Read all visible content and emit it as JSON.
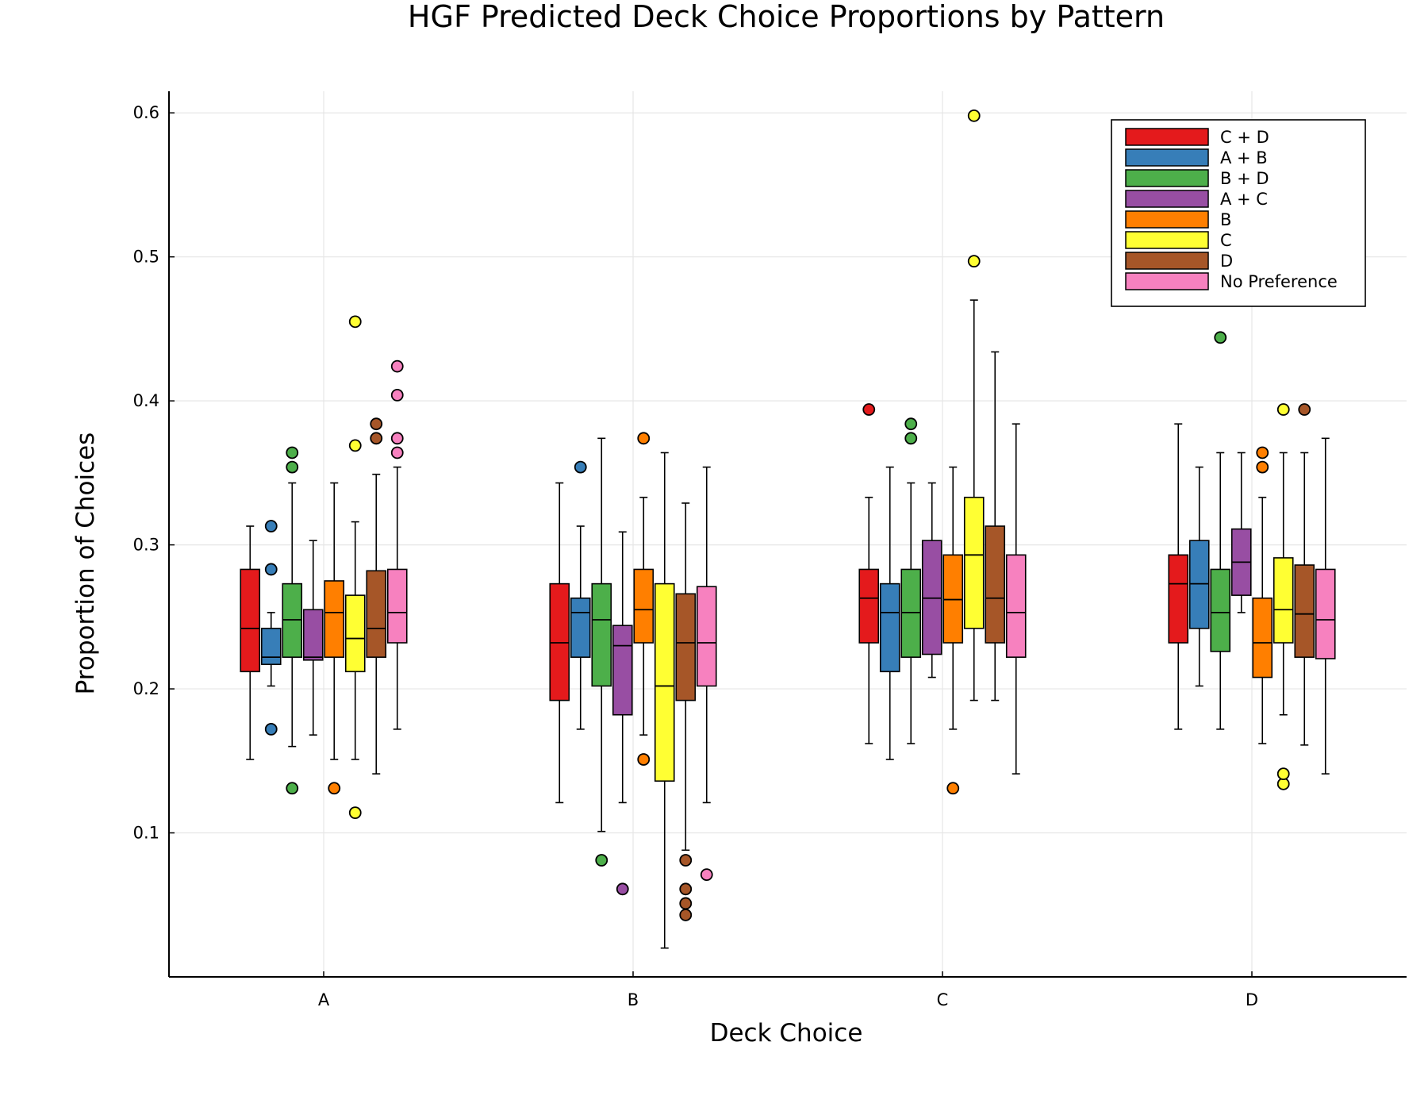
{
  "chart_data": {
    "type": "box",
    "title": "HGF Predicted Deck Choice Proportions by Pattern",
    "xlabel": "Deck Choice",
    "ylabel": "Proportion of Choices",
    "categories": [
      "A",
      "B",
      "C",
      "D"
    ],
    "ylim": [
      0.0,
      0.615
    ],
    "yticks": [
      0.1,
      0.2,
      0.3,
      0.4,
      0.5,
      0.6
    ],
    "ytick_labels": [
      "0.1",
      "0.2",
      "0.3",
      "0.4",
      "0.5",
      "0.6"
    ],
    "grid": true,
    "legend_position": "top-right",
    "series": [
      {
        "name": "C + D",
        "color": "#e41a1c",
        "boxes": [
          {
            "whisker_low": 0.151,
            "q1": 0.212,
            "median": 0.242,
            "q3": 0.283,
            "whisker_high": 0.313,
            "outliers": []
          },
          {
            "whisker_low": 0.121,
            "q1": 0.192,
            "median": 0.232,
            "q3": 0.273,
            "whisker_high": 0.343,
            "outliers": []
          },
          {
            "whisker_low": 0.162,
            "q1": 0.232,
            "median": 0.263,
            "q3": 0.283,
            "whisker_high": 0.333,
            "outliers": [
              0.394
            ]
          },
          {
            "whisker_low": 0.172,
            "q1": 0.232,
            "median": 0.273,
            "q3": 0.293,
            "whisker_high": 0.384,
            "outliers": []
          }
        ]
      },
      {
        "name": "A + B",
        "color": "#377eb8",
        "boxes": [
          {
            "whisker_low": 0.202,
            "q1": 0.217,
            "median": 0.222,
            "q3": 0.242,
            "whisker_high": 0.253,
            "outliers": [
              0.172,
              0.283,
              0.313
            ]
          },
          {
            "whisker_low": 0.172,
            "q1": 0.222,
            "median": 0.253,
            "q3": 0.263,
            "whisker_high": 0.313,
            "outliers": [
              0.354
            ]
          },
          {
            "whisker_low": 0.151,
            "q1": 0.212,
            "median": 0.253,
            "q3": 0.273,
            "whisker_high": 0.354,
            "outliers": []
          },
          {
            "whisker_low": 0.202,
            "q1": 0.242,
            "median": 0.273,
            "q3": 0.303,
            "whisker_high": 0.354,
            "outliers": []
          }
        ]
      },
      {
        "name": "B + D",
        "color": "#4daf4a",
        "boxes": [
          {
            "whisker_low": 0.16,
            "q1": 0.222,
            "median": 0.248,
            "q3": 0.273,
            "whisker_high": 0.343,
            "outliers": [
              0.131,
              0.354,
              0.364
            ]
          },
          {
            "whisker_low": 0.101,
            "q1": 0.202,
            "median": 0.248,
            "q3": 0.273,
            "whisker_high": 0.374,
            "outliers": [
              0.081
            ]
          },
          {
            "whisker_low": 0.162,
            "q1": 0.222,
            "median": 0.253,
            "q3": 0.283,
            "whisker_high": 0.343,
            "outliers": [
              0.374,
              0.384
            ]
          },
          {
            "whisker_low": 0.172,
            "q1": 0.226,
            "median": 0.253,
            "q3": 0.283,
            "whisker_high": 0.364,
            "outliers": [
              0.444
            ]
          }
        ]
      },
      {
        "name": "A + C",
        "color": "#984ea3",
        "boxes": [
          {
            "whisker_low": 0.168,
            "q1": 0.22,
            "median": 0.222,
            "q3": 0.255,
            "whisker_high": 0.303,
            "outliers": []
          },
          {
            "whisker_low": 0.121,
            "q1": 0.182,
            "median": 0.23,
            "q3": 0.244,
            "whisker_high": 0.309,
            "outliers": [
              0.061
            ]
          },
          {
            "whisker_low": 0.208,
            "q1": 0.224,
            "median": 0.263,
            "q3": 0.303,
            "whisker_high": 0.343,
            "outliers": []
          },
          {
            "whisker_low": 0.253,
            "q1": 0.265,
            "median": 0.288,
            "q3": 0.311,
            "whisker_high": 0.364,
            "outliers": []
          }
        ]
      },
      {
        "name": "B",
        "color": "#ff7f00",
        "boxes": [
          {
            "whisker_low": 0.151,
            "q1": 0.222,
            "median": 0.253,
            "q3": 0.275,
            "whisker_high": 0.343,
            "outliers": [
              0.131
            ]
          },
          {
            "whisker_low": 0.168,
            "q1": 0.232,
            "median": 0.255,
            "q3": 0.283,
            "whisker_high": 0.333,
            "outliers": [
              0.151,
              0.374
            ]
          },
          {
            "whisker_low": 0.172,
            "q1": 0.232,
            "median": 0.262,
            "q3": 0.293,
            "whisker_high": 0.354,
            "outliers": [
              0.131
            ]
          },
          {
            "whisker_low": 0.162,
            "q1": 0.208,
            "median": 0.232,
            "q3": 0.263,
            "whisker_high": 0.333,
            "outliers": [
              0.354,
              0.364
            ]
          }
        ]
      },
      {
        "name": "C",
        "color": "#ffff33",
        "boxes": [
          {
            "whisker_low": 0.151,
            "q1": 0.212,
            "median": 0.235,
            "q3": 0.265,
            "whisker_high": 0.316,
            "outliers": [
              0.114,
              0.369,
              0.455
            ]
          },
          {
            "whisker_low": 0.02,
            "q1": 0.136,
            "median": 0.202,
            "q3": 0.273,
            "whisker_high": 0.364,
            "outliers": []
          },
          {
            "whisker_low": 0.192,
            "q1": 0.242,
            "median": 0.293,
            "q3": 0.333,
            "whisker_high": 0.47,
            "outliers": [
              0.497,
              0.598
            ]
          },
          {
            "whisker_low": 0.182,
            "q1": 0.232,
            "median": 0.255,
            "q3": 0.291,
            "whisker_high": 0.364,
            "outliers": [
              0.134,
              0.141,
              0.394
            ]
          }
        ]
      },
      {
        "name": "D",
        "color": "#a65628",
        "boxes": [
          {
            "whisker_low": 0.141,
            "q1": 0.222,
            "median": 0.242,
            "q3": 0.282,
            "whisker_high": 0.349,
            "outliers": [
              0.374,
              0.384
            ]
          },
          {
            "whisker_low": 0.088,
            "q1": 0.192,
            "median": 0.232,
            "q3": 0.266,
            "whisker_high": 0.329,
            "outliers": [
              0.043,
              0.051,
              0.061,
              0.081
            ]
          },
          {
            "whisker_low": 0.192,
            "q1": 0.232,
            "median": 0.263,
            "q3": 0.313,
            "whisker_high": 0.434,
            "outliers": []
          },
          {
            "whisker_low": 0.161,
            "q1": 0.222,
            "median": 0.252,
            "q3": 0.286,
            "whisker_high": 0.364,
            "outliers": [
              0.394
            ]
          }
        ]
      },
      {
        "name": "No Preference",
        "color": "#f781bf",
        "boxes": [
          {
            "whisker_low": 0.172,
            "q1": 0.232,
            "median": 0.253,
            "q3": 0.283,
            "whisker_high": 0.354,
            "outliers": [
              0.364,
              0.374,
              0.404,
              0.424
            ]
          },
          {
            "whisker_low": 0.121,
            "q1": 0.202,
            "median": 0.232,
            "q3": 0.271,
            "whisker_high": 0.354,
            "outliers": [
              0.071
            ]
          },
          {
            "whisker_low": 0.141,
            "q1": 0.222,
            "median": 0.253,
            "q3": 0.293,
            "whisker_high": 0.384,
            "outliers": []
          },
          {
            "whisker_low": 0.141,
            "q1": 0.221,
            "median": 0.248,
            "q3": 0.283,
            "whisker_high": 0.374,
            "outliers": []
          }
        ]
      }
    ]
  }
}
